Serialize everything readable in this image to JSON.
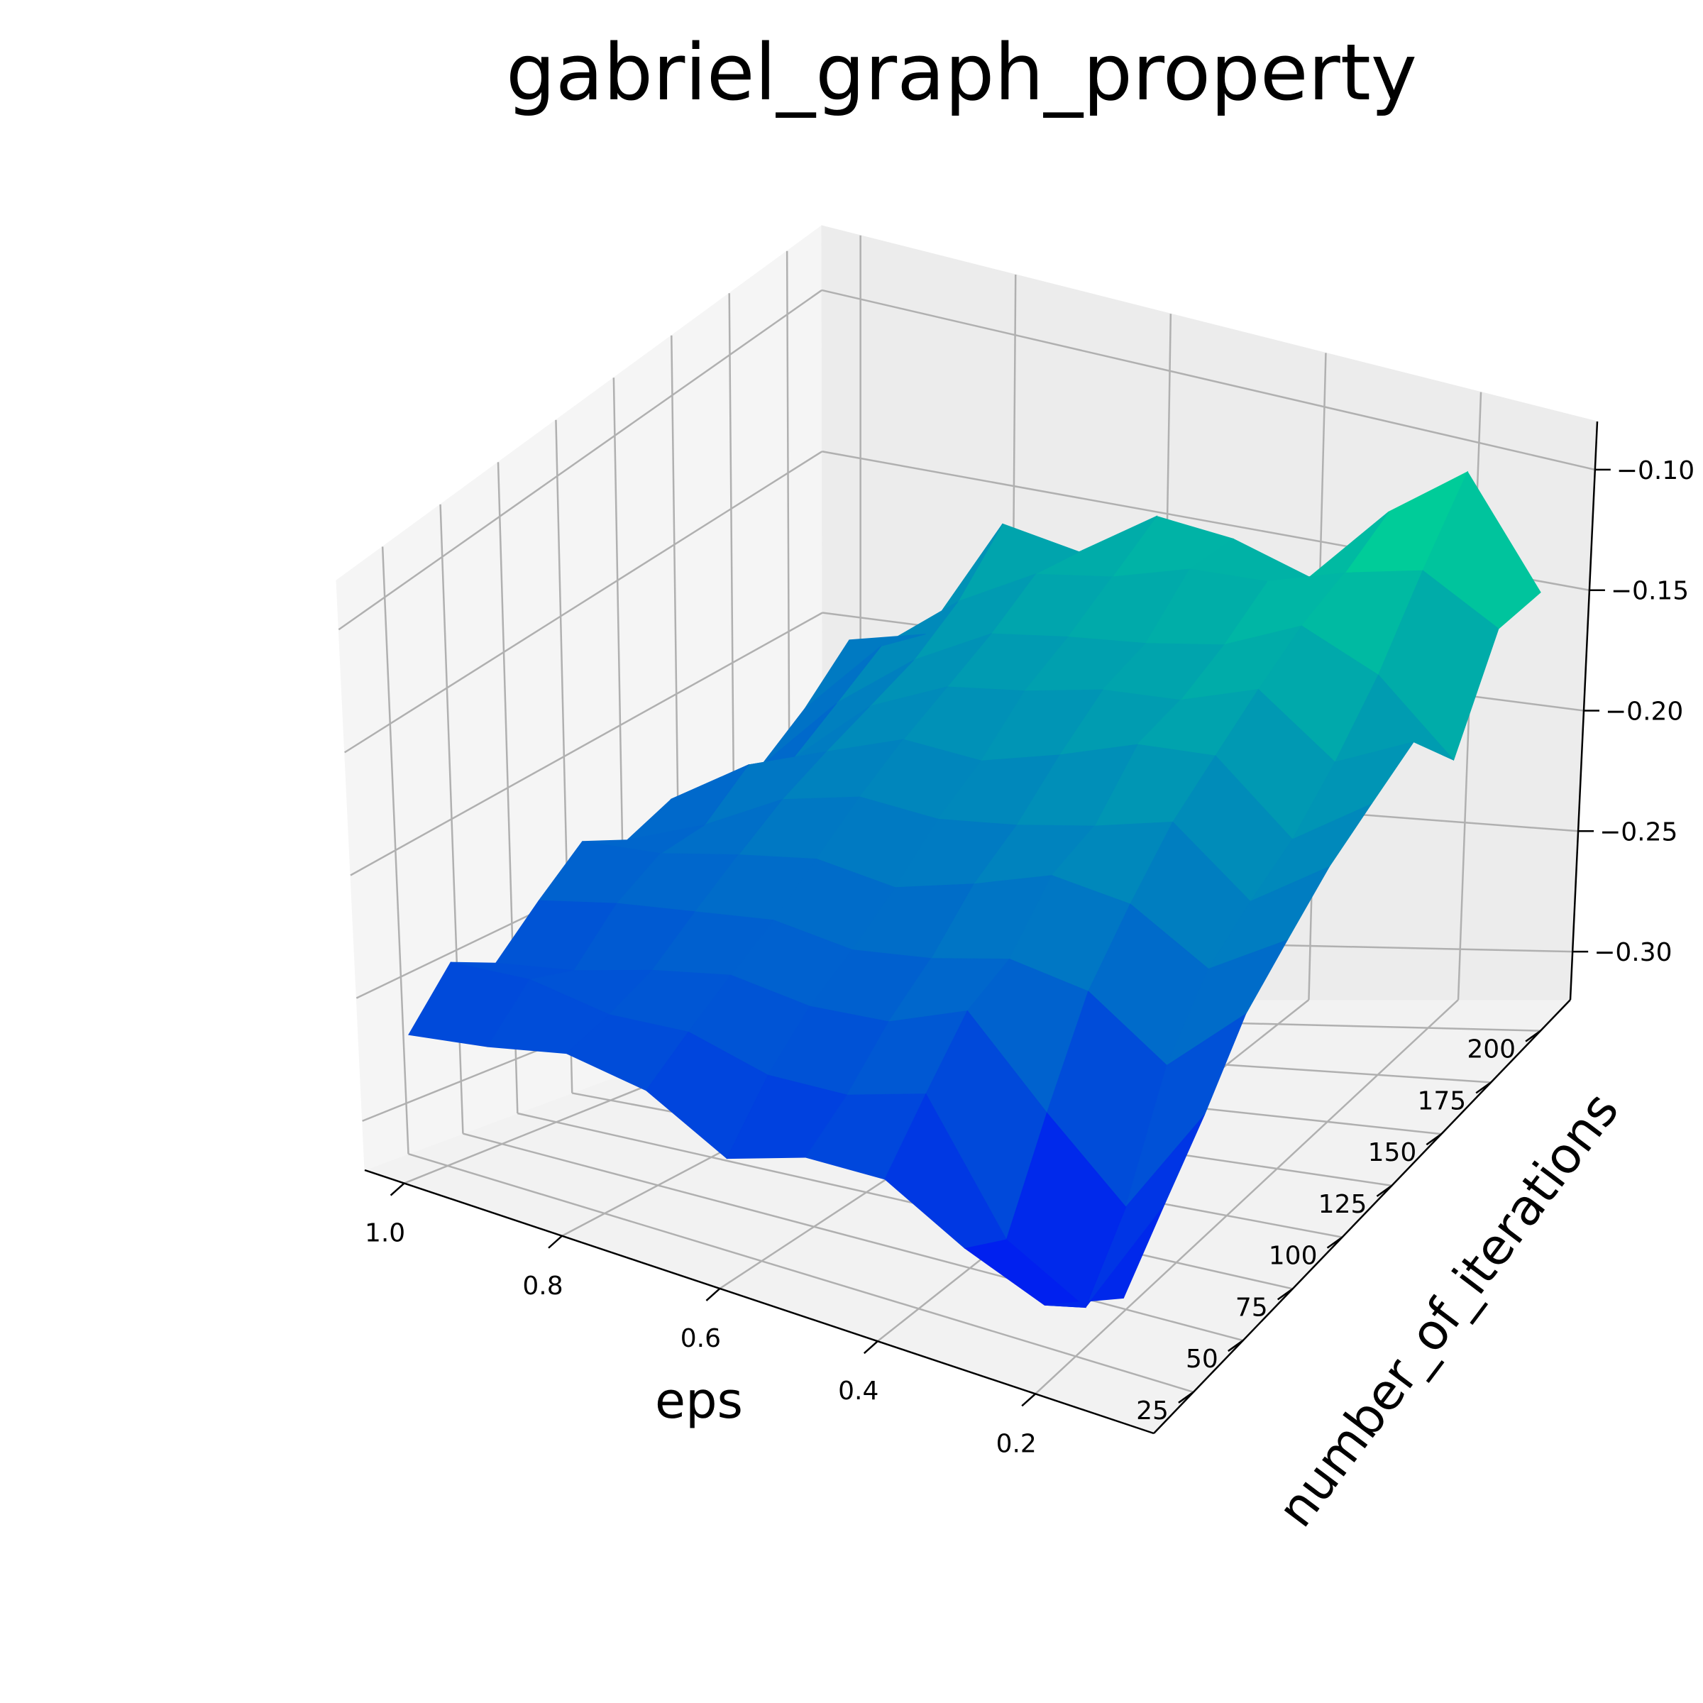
{
  "chart_data": {
    "type": "surface3d",
    "title": "gabriel_graph_property",
    "xlabel": "eps",
    "ylabel": "number_of_iterations",
    "zlabel": "",
    "x_ticks": [
      "1.0",
      "0.8",
      "0.6",
      "0.4",
      "0.2"
    ],
    "y_ticks": [
      "25",
      "50",
      "75",
      "100",
      "125",
      "150",
      "175",
      "200"
    ],
    "z_ticks": [
      "−0.10",
      "−0.15",
      "−0.20",
      "−0.25",
      "−0.30"
    ],
    "x_tick_values": [
      1.0,
      0.8,
      0.6,
      0.4,
      0.2
    ],
    "y_tick_values": [
      25,
      50,
      75,
      100,
      125,
      150,
      175,
      200
    ],
    "z_tick_values": [
      -0.1,
      -0.15,
      -0.2,
      -0.25,
      -0.3
    ],
    "xlim": [
      0.05,
      1.05
    ],
    "ylim": [
      5,
      215
    ],
    "zlim": [
      -0.32,
      -0.08
    ],
    "colormap": "winter",
    "colors": {
      "low": "#0000ff",
      "high": "#00ff80"
    },
    "grid": true,
    "eps": [
      1.0,
      0.9,
      0.8,
      0.7,
      0.6,
      0.5,
      0.4,
      0.3,
      0.2,
      0.1
    ],
    "iterations": [
      10,
      30,
      50,
      70,
      90,
      110,
      130,
      150,
      170,
      190,
      210
    ],
    "z": [
      [
        -0.262,
        -0.242,
        -0.251,
        -0.236,
        -0.223,
        -0.231,
        -0.225,
        -0.236,
        -0.23,
        -0.219,
        -0.205
      ],
      [
        -0.257,
        -0.24,
        -0.246,
        -0.23,
        -0.221,
        -0.22,
        -0.208,
        -0.215,
        -0.205,
        -0.195,
        -0.2
      ],
      [
        -0.25,
        -0.245,
        -0.238,
        -0.226,
        -0.215,
        -0.205,
        -0.198,
        -0.192,
        -0.186,
        -0.176,
        -0.16
      ],
      [
        -0.255,
        -0.243,
        -0.232,
        -0.222,
        -0.21,
        -0.198,
        -0.188,
        -0.18,
        -0.172,
        -0.162,
        -0.165
      ],
      [
        -0.272,
        -0.251,
        -0.236,
        -0.226,
        -0.214,
        -0.2,
        -0.19,
        -0.176,
        -0.168,
        -0.158,
        -0.148
      ],
      [
        -0.262,
        -0.25,
        -0.234,
        -0.222,
        -0.206,
        -0.196,
        -0.182,
        -0.17,
        -0.165,
        -0.15,
        -0.151
      ],
      [
        -0.261,
        -0.241,
        -0.222,
        -0.215,
        -0.196,
        -0.19,
        -0.172,
        -0.168,
        -0.16,
        -0.149,
        -0.16
      ],
      [
        -0.278,
        -0.288,
        -0.253,
        -0.22,
        -0.2,
        -0.182,
        -0.17,
        -0.158,
        -0.147,
        -0.14,
        -0.13
      ],
      [
        -0.29,
        -0.305,
        -0.281,
        -0.241,
        -0.218,
        -0.206,
        -0.196,
        -0.18,
        -0.16,
        -0.133,
        -0.108
      ],
      [
        -0.278,
        -0.258,
        -0.238,
        -0.214,
        -0.2,
        -0.186,
        -0.176,
        -0.166,
        -0.188,
        -0.15,
        -0.15
      ]
    ]
  }
}
